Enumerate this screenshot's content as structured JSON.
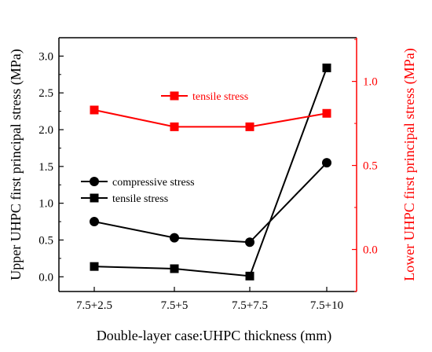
{
  "chart_data": {
    "type": "line",
    "categories": [
      "7.5+2.5",
      "7.5+5",
      "7.5+7.5",
      "7.5+10"
    ],
    "xlabel": "Double-layer case:UHPC thickness (mm)",
    "ylabel_left": "Upper UHPC first principal stress (MPa)",
    "ylabel_right": "Lower UHPC first principal stress (MPa)",
    "ylim_left": [
      -0.2,
      3.25
    ],
    "yticks_left": [
      "0.0",
      "0.5",
      "1.0",
      "1.5",
      "2.0",
      "2.5",
      "3.0"
    ],
    "ylim_right": [
      -0.25,
      1.26
    ],
    "yticks_right": [
      "0.0",
      "0.5",
      "1.0"
    ],
    "left_axis_color": "#000000",
    "right_axis_color": "#ff0000",
    "series": [
      {
        "name": "compressive stress",
        "axis": "left",
        "marker": "circle",
        "color": "#000000",
        "values": [
          0.75,
          0.53,
          0.47,
          1.55
        ]
      },
      {
        "name": "tensile stress",
        "axis": "left",
        "marker": "square",
        "color": "#000000",
        "values": [
          0.14,
          0.11,
          0.01,
          2.84
        ]
      },
      {
        "name": "tensile stress",
        "axis": "right",
        "marker": "square",
        "color": "#ff0000",
        "values": [
          0.83,
          0.73,
          0.73,
          0.81
        ]
      }
    ],
    "legend_left_position": "center-left",
    "legend_right_position": "top-center",
    "grid": false
  }
}
